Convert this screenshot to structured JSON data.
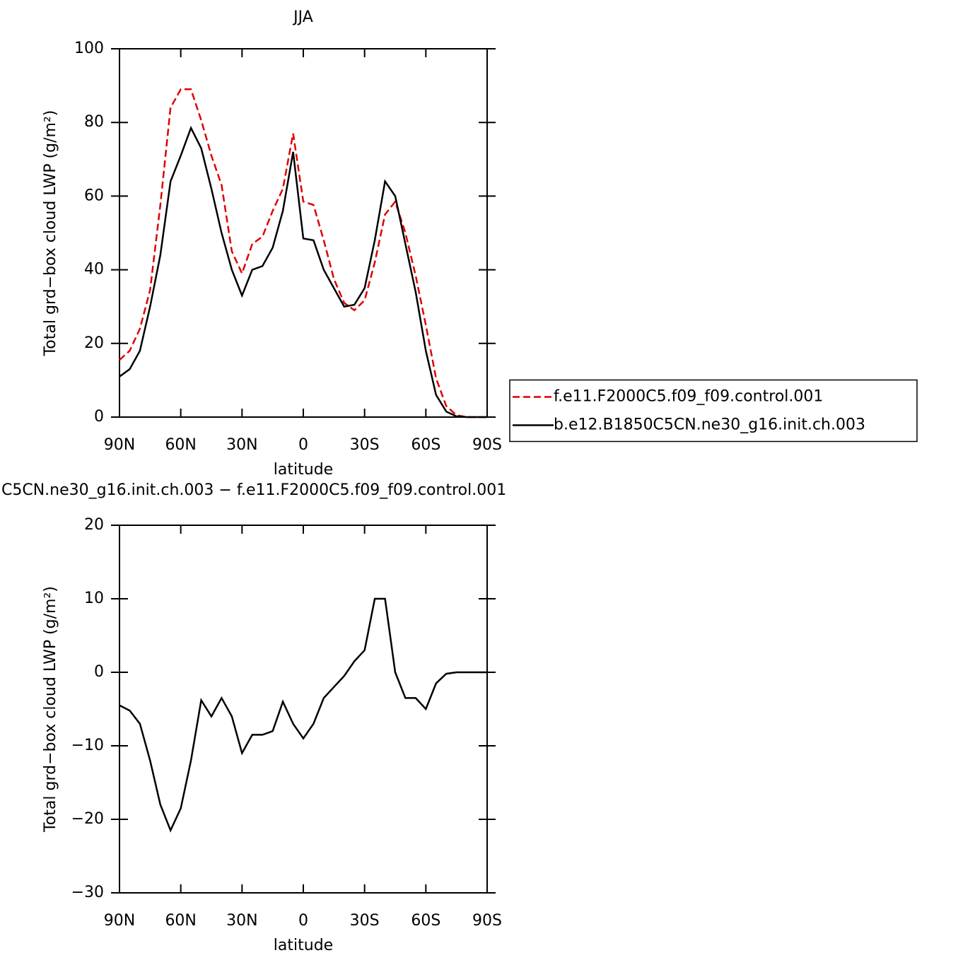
{
  "chart_data": [
    {
      "type": "line",
      "title": "JJA",
      "xlabel": "latitude",
      "ylabel": "Total grd−box cloud LWP (g/m²)",
      "x": [
        90,
        85,
        80,
        75,
        70,
        65,
        60,
        55,
        50,
        45,
        40,
        35,
        30,
        25,
        20,
        15,
        10,
        5,
        0,
        -5,
        -10,
        -15,
        -20,
        -25,
        -30,
        -35,
        -40,
        -45,
        -50,
        -55,
        -60,
        -65,
        -70,
        -75,
        -80,
        -85,
        -90
      ],
      "series": [
        {
          "name": "f.e11.F2000C5.f09_f09.control.001",
          "color": "#e00000",
          "dash": true,
          "values": [
            15.5,
            18,
            24,
            34.5,
            57.6,
            84,
            89,
            89,
            80.6,
            71,
            63,
            45,
            39,
            47,
            49,
            56,
            62,
            77,
            58.5,
            57.6,
            48,
            37.5,
            31,
            29,
            31.7,
            42,
            55,
            58.5,
            50,
            38.4,
            25,
            10.5,
            3,
            0.5,
            0,
            0,
            0
          ]
        },
        {
          "name": "b.e12.B1850C5CN.ne30_g16.init.ch.003",
          "color": "#000000",
          "dash": false,
          "values": [
            11,
            13,
            18,
            30,
            44,
            64,
            71,
            78.5,
            73,
            62,
            50,
            40,
            33,
            40,
            41,
            46,
            56,
            72,
            48.5,
            48,
            40,
            35,
            30,
            30.5,
            35,
            48,
            64,
            60,
            47,
            34,
            18,
            6,
            1.5,
            0.2,
            0,
            0,
            0
          ]
        }
      ],
      "legend": "right",
      "xlim": [
        90,
        -90
      ],
      "xticks": [
        {
          "value": 90,
          "label": "90N"
        },
        {
          "value": 60,
          "label": "60N"
        },
        {
          "value": 30,
          "label": "30N"
        },
        0,
        {
          "value": -30,
          "label": "30S"
        },
        {
          "value": -60,
          "label": "60S"
        },
        {
          "value": -90,
          "label": "90S"
        }
      ],
      "ylim": [
        0,
        100
      ],
      "yticks": [
        0,
        20,
        40,
        60,
        80,
        100
      ]
    },
    {
      "type": "line",
      "title": "C5CN.ne30_g16.init.ch.003 − f.e11.F2000C5.f09_f09.control.001",
      "xlabel": "latitude",
      "ylabel": "Total grd−box cloud LWP (g/m²)",
      "x": [
        90,
        85,
        80,
        75,
        70,
        65,
        60,
        55,
        50,
        45,
        40,
        35,
        30,
        25,
        20,
        15,
        10,
        5,
        0,
        -5,
        -10,
        -15,
        -20,
        -25,
        -30,
        -35,
        -40,
        -45,
        -50,
        -55,
        -60,
        -65,
        -70,
        -75,
        -80,
        -85,
        -90
      ],
      "series": [
        {
          "color": "#000000",
          "dash": false,
          "values": [
            -4.5,
            -5.2,
            -7,
            -12,
            -18,
            -21.5,
            -18.5,
            -12,
            -3.8,
            -6,
            -3.5,
            -6,
            -11,
            -8.5,
            -8.5,
            -8,
            -4,
            -7,
            -9,
            -7,
            -3.5,
            -2,
            -0.5,
            1.5,
            3,
            10,
            10,
            0,
            -3.5,
            -3.5,
            -5,
            -1.5,
            -0.2,
            0,
            0,
            0,
            0
          ]
        }
      ],
      "xlim": [
        90,
        -90
      ],
      "xticks": [
        {
          "value": 90,
          "label": "90N"
        },
        {
          "value": 60,
          "label": "60N"
        },
        {
          "value": 30,
          "label": "30N"
        },
        0,
        {
          "value": -30,
          "label": "30S"
        },
        {
          "value": -60,
          "label": "60S"
        },
        {
          "value": -90,
          "label": "90S"
        }
      ],
      "ylim": [
        -30,
        20
      ],
      "yticks": [
        {
          "value": -30,
          "label": "−30"
        },
        {
          "value": -20,
          "label": "−20"
        },
        {
          "value": -10,
          "label": "−10"
        },
        0,
        10,
        20
      ]
    }
  ]
}
